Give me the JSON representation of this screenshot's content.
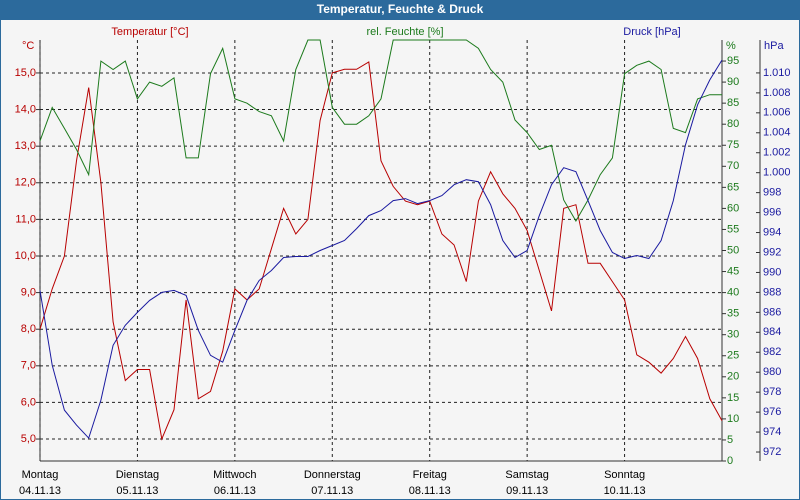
{
  "chart_data": {
    "type": "line",
    "title": "Temperatur, Feuchte & Druck",
    "x": [
      0,
      0.125,
      0.25,
      0.375,
      0.5,
      0.625,
      0.75,
      0.875,
      1,
      1.125,
      1.25,
      1.375,
      1.5,
      1.625,
      1.75,
      1.875,
      2,
      2.125,
      2.25,
      2.375,
      2.5,
      2.625,
      2.75,
      2.875,
      3,
      3.125,
      3.25,
      3.375,
      3.5,
      3.625,
      3.75,
      3.875,
      4,
      4.125,
      4.25,
      4.375,
      4.5,
      4.625,
      4.75,
      4.875,
      5,
      5.125,
      5.25,
      5.375,
      5.5,
      5.625,
      5.75,
      5.875,
      6,
      6.125,
      6.25,
      6.375,
      6.5,
      6.625,
      6.75,
      6.875,
      7
    ],
    "xlim": [
      0,
      7
    ],
    "xticks": [
      {
        "value": 0,
        "label": "Montag"
      },
      {
        "value": 1,
        "label": "Dienstag"
      },
      {
        "value": 2,
        "label": "Mittwoch"
      },
      {
        "value": 3,
        "label": "Donnerstag"
      },
      {
        "value": 4,
        "label": "Freitag"
      },
      {
        "value": 5,
        "label": "Samstag"
      },
      {
        "value": 6,
        "label": "Sonntag"
      }
    ],
    "xtick_sublabels": [
      "04.11.13",
      "05.11.13",
      "06.11.13",
      "07.11.13",
      "08.11.13",
      "09.11.13",
      "10.11.13"
    ],
    "grid": true,
    "ylim": [
      4.4,
      15.9
    ],
    "y_unit": "°C",
    "yticks": [
      {
        "value": 5,
        "label": "5,0"
      },
      {
        "value": 6,
        "label": "6,0"
      },
      {
        "value": 7,
        "label": "7,0"
      },
      {
        "value": 8,
        "label": "8,0"
      },
      {
        "value": 9,
        "label": "9,0"
      },
      {
        "value": 10,
        "label": "10,0"
      },
      {
        "value": 11,
        "label": "11,0"
      },
      {
        "value": 12,
        "label": "12,0"
      },
      {
        "value": 13,
        "label": "13,0"
      },
      {
        "value": 14,
        "label": "14,0"
      },
      {
        "value": 15,
        "label": "15,0"
      }
    ],
    "y2lim": [
      0,
      100
    ],
    "y2_unit": "%",
    "y2ticks": [
      0,
      5,
      10,
      15,
      20,
      25,
      30,
      35,
      40,
      45,
      50,
      55,
      60,
      65,
      70,
      75,
      80,
      85,
      90,
      95
    ],
    "y3lim": [
      971.1,
      1013.3
    ],
    "y3_unit": "hPa",
    "y3ticks": [
      972,
      974,
      976,
      978,
      980,
      982,
      984,
      986,
      988,
      990,
      992,
      994,
      996,
      998,
      {
        "value": 1000,
        "label": "1.000"
      },
      {
        "value": 1002,
        "label": "1.002"
      },
      {
        "value": 1004,
        "label": "1.004"
      },
      {
        "value": 1006,
        "label": "1.006"
      },
      {
        "value": 1008,
        "label": "1.008"
      },
      {
        "value": 1010,
        "label": "1.010"
      }
    ],
    "series": [
      {
        "name": "Temperatur [°C]",
        "color": "#b80000",
        "axis": "y",
        "values": [
          8.0,
          9.1,
          10.0,
          12.6,
          14.6,
          12.0,
          8.2,
          6.6,
          6.9,
          6.9,
          5.0,
          5.8,
          8.8,
          6.1,
          6.3,
          7.4,
          9.1,
          8.8,
          9.1,
          10.2,
          11.3,
          10.6,
          11.0,
          13.7,
          15.0,
          15.1,
          15.1,
          15.3,
          12.6,
          11.9,
          11.5,
          11.4,
          11.5,
          10.6,
          10.3,
          9.3,
          11.5,
          12.3,
          11.7,
          11.3,
          10.7,
          9.6,
          8.5,
          11.3,
          11.4,
          9.8,
          9.8,
          9.3,
          8.8,
          7.3,
          7.1,
          6.8,
          7.2,
          7.8,
          7.2,
          6.1,
          5.5
        ]
      },
      {
        "name": "rel. Feuchte [%]",
        "color": "#1c7a1c",
        "axis": "y2",
        "values": [
          76,
          84,
          79,
          74,
          68,
          95,
          93,
          95,
          86,
          90,
          89,
          91,
          72,
          72,
          92,
          98,
          86,
          85,
          83,
          82,
          76,
          93,
          100,
          100,
          84,
          80,
          80,
          82,
          86,
          100,
          100,
          100,
          100,
          100,
          100,
          100,
          98,
          93,
          90,
          81,
          78,
          74,
          75,
          62,
          57,
          62,
          68,
          72,
          92,
          94,
          95,
          93,
          79,
          78,
          86,
          87,
          87
        ]
      },
      {
        "name": "Druck [hPa]",
        "color": "#1a1aa0",
        "axis": "y3",
        "values": [
          988.2,
          980.7,
          976.2,
          974.7,
          973.4,
          977.2,
          982.7,
          984.7,
          986.0,
          987.2,
          988.0,
          988.2,
          987.7,
          984.2,
          981.7,
          981.0,
          984.2,
          987.2,
          989.2,
          990.2,
          991.5,
          991.6,
          991.6,
          992.2,
          992.7,
          993.2,
          994.4,
          995.7,
          996.2,
          997.2,
          997.4,
          996.9,
          997.2,
          997.7,
          998.8,
          999.3,
          999.1,
          996.8,
          993.2,
          991.5,
          992.2,
          995.7,
          998.8,
          1000.5,
          1000.1,
          997.2,
          994.2,
          992.0,
          991.4,
          991.7,
          991.4,
          993.2,
          997.2,
          1002.8,
          1006.8,
          1009.3,
          1011.3
        ]
      }
    ]
  }
}
